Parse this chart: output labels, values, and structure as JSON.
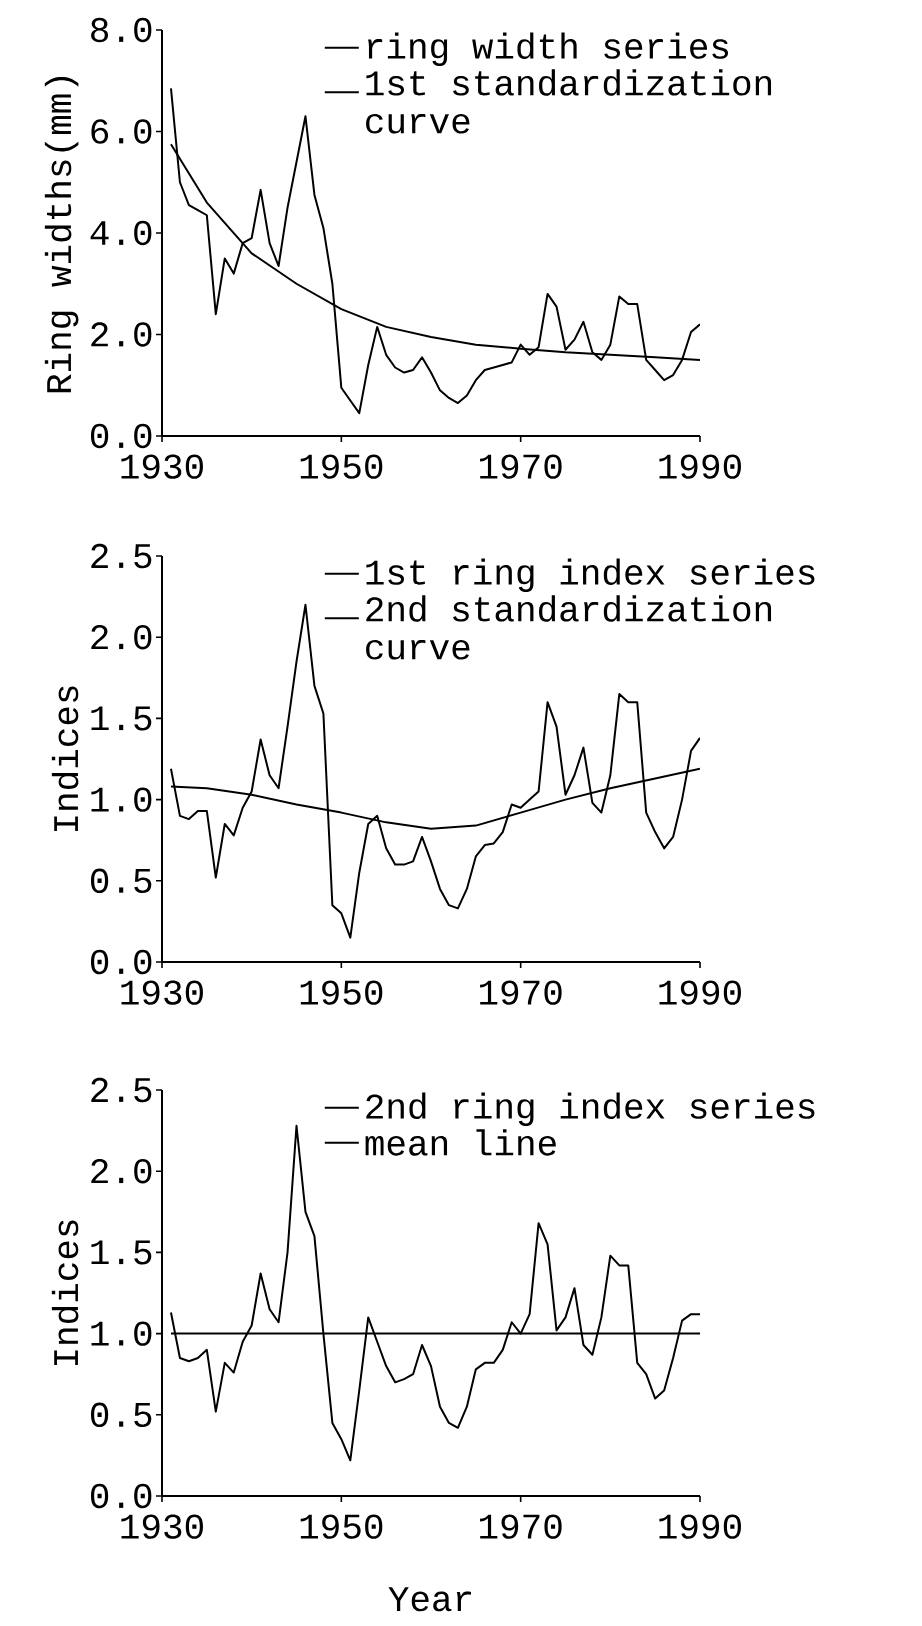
{
  "chart_data": [
    {
      "type": "line",
      "ylabel": "Ring widths(mm)",
      "legend": "top right",
      "x": [
        1931,
        1932,
        1933,
        1934,
        1935,
        1936,
        1937,
        1938,
        1939,
        1940,
        1941,
        1942,
        1943,
        1944,
        1945,
        1946,
        1947,
        1948,
        1949,
        1950,
        1951,
        1952,
        1953,
        1954,
        1955,
        1956,
        1957,
        1958,
        1959,
        1960,
        1961,
        1962,
        1963,
        1964,
        1965,
        1966,
        1967,
        1968,
        1969,
        1970,
        1971,
        1972,
        1973,
        1974,
        1975,
        1976,
        1977,
        1978,
        1979,
        1980,
        1981,
        1982,
        1983,
        1984,
        1985,
        1986,
        1987,
        1988,
        1989,
        1990
      ],
      "series": [
        {
          "name": "ring width series",
          "color": "#000000",
          "values": [
            6.85,
            5.0,
            4.55,
            4.45,
            4.35,
            2.4,
            3.5,
            3.2,
            3.8,
            3.9,
            4.85,
            3.8,
            3.35,
            4.5,
            5.4,
            6.3,
            4.75,
            4.1,
            3.0,
            0.95,
            0.7,
            0.45,
            1.4,
            2.15,
            1.6,
            1.35,
            1.25,
            1.3,
            1.55,
            1.25,
            0.9,
            0.75,
            0.65,
            0.8,
            1.1,
            1.3,
            1.35,
            1.4,
            1.45,
            1.8,
            1.6,
            1.75,
            2.8,
            2.55,
            1.7,
            1.9,
            2.25,
            1.65,
            1.5,
            1.8,
            2.75,
            2.6,
            2.6,
            1.5,
            1.3,
            1.1,
            1.2,
            1.5,
            2.05,
            2.2
          ]
        },
        {
          "name": "1st standardization curve",
          "color": "#000000",
          "x": [
            1931,
            1935,
            1940,
            1945,
            1950,
            1955,
            1960,
            1965,
            1970,
            1975,
            1980,
            1985,
            1990
          ],
          "values": [
            5.75,
            4.6,
            3.6,
            3.0,
            2.5,
            2.15,
            1.95,
            1.8,
            1.72,
            1.65,
            1.6,
            1.55,
            1.5
          ]
        }
      ],
      "xlim": [
        1930,
        1990
      ],
      "ylim": [
        0,
        8
      ],
      "xticks": [
        1930,
        1950,
        1970,
        1990
      ],
      "yticks": [
        {
          "value": 0,
          "label": "0.0"
        },
        {
          "value": 2,
          "label": "2.0"
        },
        {
          "value": 4,
          "label": "4.0"
        },
        {
          "value": 6,
          "label": "6.0"
        },
        {
          "value": 8,
          "label": "8.0"
        }
      ]
    },
    {
      "type": "line",
      "ylabel": "Indices",
      "legend": "top right",
      "x": [
        1931,
        1932,
        1933,
        1934,
        1935,
        1936,
        1937,
        1938,
        1939,
        1940,
        1941,
        1942,
        1943,
        1944,
        1945,
        1946,
        1947,
        1948,
        1949,
        1950,
        1951,
        1952,
        1953,
        1954,
        1955,
        1956,
        1957,
        1958,
        1959,
        1960,
        1961,
        1962,
        1963,
        1964,
        1965,
        1966,
        1967,
        1968,
        1969,
        1970,
        1971,
        1972,
        1973,
        1974,
        1975,
        1976,
        1977,
        1978,
        1979,
        1980,
        1981,
        1982,
        1983,
        1984,
        1985,
        1986,
        1987,
        1988,
        1989,
        1990
      ],
      "series": [
        {
          "name": "1st ring index series",
          "color": "#000000",
          "values": [
            1.19,
            0.9,
            0.88,
            0.93,
            0.93,
            0.52,
            0.85,
            0.78,
            0.95,
            1.05,
            1.37,
            1.15,
            1.07,
            1.45,
            1.85,
            2.2,
            1.7,
            1.53,
            0.35,
            0.3,
            0.15,
            0.55,
            0.85,
            0.9,
            0.7,
            0.6,
            0.6,
            0.62,
            0.77,
            0.62,
            0.45,
            0.35,
            0.33,
            0.45,
            0.65,
            0.72,
            0.73,
            0.8,
            0.97,
            0.95,
            1.0,
            1.05,
            1.6,
            1.45,
            1.03,
            1.15,
            1.32,
            0.98,
            0.92,
            1.15,
            1.65,
            1.6,
            1.6,
            0.92,
            0.8,
            0.7,
            0.77,
            1.0,
            1.3,
            1.38
          ]
        },
        {
          "name": "2nd standardization curve",
          "color": "#000000",
          "x": [
            1931,
            1935,
            1940,
            1945,
            1950,
            1955,
            1960,
            1965,
            1970,
            1975,
            1980,
            1985,
            1990
          ],
          "values": [
            1.08,
            1.07,
            1.03,
            0.97,
            0.92,
            0.86,
            0.82,
            0.84,
            0.92,
            1.0,
            1.07,
            1.13,
            1.19
          ]
        }
      ],
      "xlim": [
        1930,
        1990
      ],
      "ylim": [
        0,
        2.5
      ],
      "xticks": [
        1930,
        1950,
        1970,
        1990
      ],
      "yticks": [
        {
          "value": 0,
          "label": "0.0"
        },
        {
          "value": 0.5,
          "label": "0.5"
        },
        {
          "value": 1,
          "label": "1.0"
        },
        {
          "value": 1.5,
          "label": "1.5"
        },
        {
          "value": 2,
          "label": "2.0"
        },
        {
          "value": 2.5,
          "label": "2.5"
        }
      ]
    },
    {
      "type": "line",
      "ylabel": "Indices",
      "xlabel": "Year",
      "legend": "top right",
      "x": [
        1931,
        1932,
        1933,
        1934,
        1935,
        1936,
        1937,
        1938,
        1939,
        1940,
        1941,
        1942,
        1943,
        1944,
        1945,
        1946,
        1947,
        1948,
        1949,
        1950,
        1951,
        1952,
        1953,
        1954,
        1955,
        1956,
        1957,
        1958,
        1959,
        1960,
        1961,
        1962,
        1963,
        1964,
        1965,
        1966,
        1967,
        1968,
        1969,
        1970,
        1971,
        1972,
        1973,
        1974,
        1975,
        1976,
        1977,
        1978,
        1979,
        1980,
        1981,
        1982,
        1983,
        1984,
        1985,
        1986,
        1987,
        1988,
        1989,
        1990
      ],
      "series": [
        {
          "name": "2nd ring index series",
          "color": "#000000",
          "values": [
            1.13,
            0.85,
            0.83,
            0.85,
            0.9,
            0.52,
            0.82,
            0.76,
            0.95,
            1.05,
            1.37,
            1.15,
            1.07,
            1.5,
            2.28,
            1.75,
            1.6,
            1.0,
            0.45,
            0.35,
            0.22,
            0.65,
            1.1,
            0.95,
            0.8,
            0.7,
            0.72,
            0.75,
            0.93,
            0.8,
            0.55,
            0.45,
            0.42,
            0.55,
            0.78,
            0.82,
            0.82,
            0.9,
            1.07,
            1.0,
            1.12,
            1.68,
            1.55,
            1.02,
            1.1,
            1.28,
            0.93,
            0.87,
            1.1,
            1.48,
            1.42,
            1.42,
            0.82,
            0.75,
            0.6,
            0.65,
            0.85,
            1.08,
            1.12,
            1.12
          ]
        },
        {
          "name": "mean line",
          "color": "#000000",
          "x": [
            1931,
            1990
          ],
          "values": [
            1.0,
            1.0
          ]
        }
      ],
      "xlim": [
        1930,
        1990
      ],
      "ylim": [
        0,
        2.5
      ],
      "xticks": [
        1930,
        1950,
        1970,
        1990
      ],
      "yticks": [
        {
          "value": 0,
          "label": "0.0"
        },
        {
          "value": 0.5,
          "label": "0.5"
        },
        {
          "value": 1,
          "label": "1.0"
        },
        {
          "value": 1.5,
          "label": "1.5"
        },
        {
          "value": 2,
          "label": "2.0"
        },
        {
          "value": 2.5,
          "label": "2.5"
        }
      ]
    }
  ]
}
